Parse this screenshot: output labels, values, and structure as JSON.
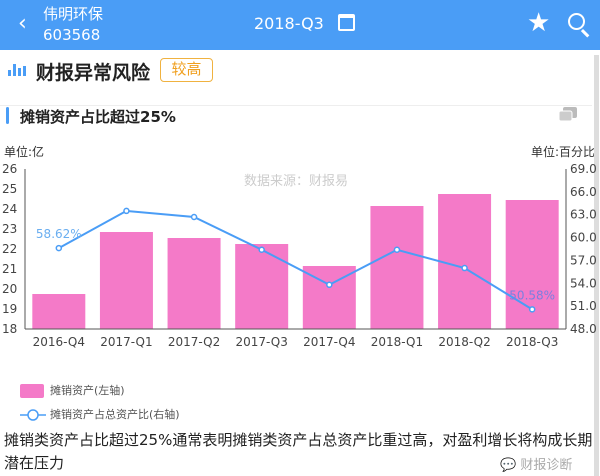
{
  "header": {
    "back_icon": "chevron-left-icon",
    "stock_name": "伟明环保",
    "stock_code": "603568",
    "period": "2018-Q3",
    "calendar_icon": "calendar-icon",
    "star_icon": "star-icon",
    "search_icon": "search-icon",
    "color": "#4a9df6"
  },
  "section": {
    "title": "财报异常风险",
    "badge": "较高",
    "badge_color": "#f0a020"
  },
  "subsection": {
    "title": "摊销资产占比超过25%",
    "comment_icon": "comment-icon"
  },
  "chart_data": {
    "type": "bar+line",
    "watermark": "数据来源：财报易",
    "left_unit": "单位:亿",
    "right_unit": "单位:百分比",
    "categories": [
      "2016-Q4",
      "2017-Q1",
      "2017-Q2",
      "2017-Q3",
      "2017-Q4",
      "2018-Q1",
      "2018-Q2",
      "2018-Q3"
    ],
    "left_axis": {
      "range": [
        18,
        26
      ],
      "ticks": [
        "18",
        "19",
        "20",
        "21",
        "22",
        "23",
        "24",
        "25",
        "26"
      ]
    },
    "right_axis": {
      "range": [
        48,
        69
      ],
      "ticks": [
        "48.0",
        "51.0",
        "54.0",
        "57.0",
        "60.0",
        "63.0",
        "66.0",
        "69.0"
      ]
    },
    "series": [
      {
        "name": "摊销资产(左轴)",
        "type": "bar",
        "axis": "left",
        "color": "#f47ac8",
        "values": [
          19.75,
          22.85,
          22.55,
          22.25,
          21.15,
          24.15,
          24.75,
          24.45
        ]
      },
      {
        "name": "摊销资产占总资产比(右轴)",
        "type": "line",
        "axis": "right",
        "color": "#4a9df6",
        "values": [
          58.62,
          63.5,
          62.7,
          58.4,
          53.8,
          58.4,
          56.0,
          50.58
        ]
      }
    ],
    "data_labels": [
      {
        "index": 0,
        "text": "58.62%"
      },
      {
        "index": 7,
        "text": "50.58%"
      }
    ]
  },
  "description": "摊销类资产占比超过25%通常表明摊销类资产占总资产比重过高，对盈利增长将构成长期潜在压力",
  "watermark_account": "财报诊断"
}
